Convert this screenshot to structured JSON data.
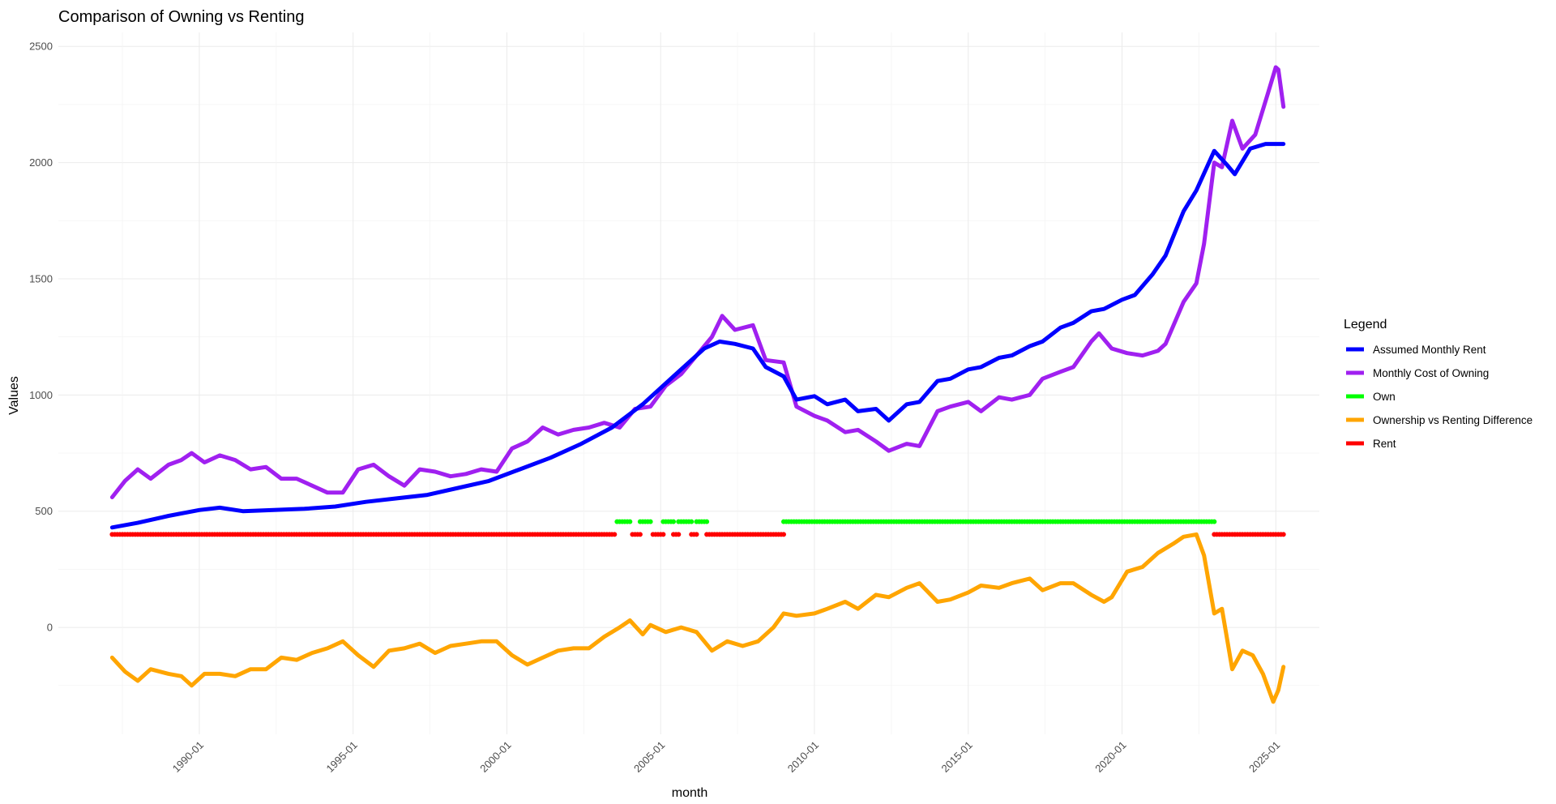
{
  "chart_data": {
    "type": "line",
    "title": "Comparison of Owning vs Renting",
    "xlabel": "month",
    "ylabel": "Values",
    "x_ticks": [
      "1990-01",
      "1995-01",
      "2000-01",
      "2005-01",
      "2010-01",
      "2015-01",
      "2020-01",
      "2025-01"
    ],
    "xlim": [
      "1985-06",
      "2026-06"
    ],
    "y_ticks": [
      "0",
      "500",
      "1000",
      "1500",
      "2000",
      "2500"
    ],
    "ylim": [
      -460,
      2560
    ],
    "grid": true,
    "legend_title": "Legend",
    "legend_position": "right",
    "series": [
      {
        "name": "Assumed Monthly Rent",
        "color": "#0000FF",
        "kind": "line",
        "points": [
          [
            "1987-03",
            430
          ],
          [
            "1988-01",
            450
          ],
          [
            "1989-01",
            480
          ],
          [
            "1990-01",
            505
          ],
          [
            "1990-09",
            515
          ],
          [
            "1991-06",
            500
          ],
          [
            "1992-06",
            505
          ],
          [
            "1993-06",
            510
          ],
          [
            "1994-06",
            520
          ],
          [
            "1995-06",
            540
          ],
          [
            "1996-06",
            555
          ],
          [
            "1997-06",
            570
          ],
          [
            "1998-06",
            600
          ],
          [
            "1999-06",
            630
          ],
          [
            "2000-06",
            680
          ],
          [
            "2001-06",
            730
          ],
          [
            "2002-06",
            790
          ],
          [
            "2003-06",
            860
          ],
          [
            "2004-06",
            960
          ],
          [
            "2005-06",
            1080
          ],
          [
            "2006-06",
            1200
          ],
          [
            "2006-12",
            1230
          ],
          [
            "2007-06",
            1220
          ],
          [
            "2008-01",
            1200
          ],
          [
            "2008-06",
            1120
          ],
          [
            "2009-01",
            1080
          ],
          [
            "2009-06",
            980
          ],
          [
            "2010-01",
            995
          ],
          [
            "2010-06",
            960
          ],
          [
            "2011-01",
            980
          ],
          [
            "2011-06",
            930
          ],
          [
            "2012-01",
            940
          ],
          [
            "2012-06",
            890
          ],
          [
            "2013-01",
            960
          ],
          [
            "2013-06",
            970
          ],
          [
            "2014-01",
            1060
          ],
          [
            "2014-06",
            1070
          ],
          [
            "2015-01",
            1110
          ],
          [
            "2015-06",
            1120
          ],
          [
            "2016-01",
            1160
          ],
          [
            "2016-06",
            1170
          ],
          [
            "2017-01",
            1210
          ],
          [
            "2017-06",
            1230
          ],
          [
            "2018-01",
            1290
          ],
          [
            "2018-06",
            1310
          ],
          [
            "2019-01",
            1360
          ],
          [
            "2019-06",
            1370
          ],
          [
            "2020-01",
            1410
          ],
          [
            "2020-06",
            1430
          ],
          [
            "2021-01",
            1520
          ],
          [
            "2021-06",
            1600
          ],
          [
            "2022-01",
            1790
          ],
          [
            "2022-06",
            1880
          ],
          [
            "2023-01",
            2050
          ],
          [
            "2023-06",
            1990
          ],
          [
            "2023-09",
            1950
          ],
          [
            "2024-03",
            2060
          ],
          [
            "2024-09",
            2080
          ],
          [
            "2025-04",
            2080
          ]
        ]
      },
      {
        "name": "Monthly Cost of Owning",
        "color": "#A020F0",
        "kind": "line",
        "points": [
          [
            "1987-03",
            560
          ],
          [
            "1987-08",
            630
          ],
          [
            "1988-01",
            680
          ],
          [
            "1988-06",
            640
          ],
          [
            "1989-01",
            700
          ],
          [
            "1989-06",
            720
          ],
          [
            "1989-10",
            750
          ],
          [
            "1990-03",
            710
          ],
          [
            "1990-09",
            740
          ],
          [
            "1991-03",
            720
          ],
          [
            "1991-09",
            680
          ],
          [
            "1992-03",
            690
          ],
          [
            "1992-09",
            640
          ],
          [
            "1993-03",
            640
          ],
          [
            "1993-09",
            610
          ],
          [
            "1994-03",
            580
          ],
          [
            "1994-09",
            580
          ],
          [
            "1995-03",
            680
          ],
          [
            "1995-09",
            700
          ],
          [
            "1996-03",
            650
          ],
          [
            "1996-09",
            610
          ],
          [
            "1997-03",
            680
          ],
          [
            "1997-09",
            670
          ],
          [
            "1998-03",
            650
          ],
          [
            "1998-09",
            660
          ],
          [
            "1999-03",
            680
          ],
          [
            "1999-09",
            670
          ],
          [
            "2000-03",
            770
          ],
          [
            "2000-09",
            800
          ],
          [
            "2001-03",
            860
          ],
          [
            "2001-09",
            830
          ],
          [
            "2002-03",
            850
          ],
          [
            "2002-09",
            860
          ],
          [
            "2003-03",
            880
          ],
          [
            "2003-09",
            860
          ],
          [
            "2004-03",
            940
          ],
          [
            "2004-09",
            950
          ],
          [
            "2005-03",
            1040
          ],
          [
            "2005-09",
            1090
          ],
          [
            "2006-03",
            1170
          ],
          [
            "2006-09",
            1250
          ],
          [
            "2007-01",
            1340
          ],
          [
            "2007-06",
            1280
          ],
          [
            "2008-01",
            1300
          ],
          [
            "2008-06",
            1150
          ],
          [
            "2009-01",
            1140
          ],
          [
            "2009-06",
            950
          ],
          [
            "2010-01",
            910
          ],
          [
            "2010-06",
            890
          ],
          [
            "2011-01",
            840
          ],
          [
            "2011-06",
            850
          ],
          [
            "2012-01",
            800
          ],
          [
            "2012-06",
            760
          ],
          [
            "2013-01",
            790
          ],
          [
            "2013-06",
            780
          ],
          [
            "2014-01",
            930
          ],
          [
            "2014-06",
            950
          ],
          [
            "2015-01",
            970
          ],
          [
            "2015-06",
            930
          ],
          [
            "2016-01",
            990
          ],
          [
            "2016-06",
            980
          ],
          [
            "2017-01",
            1000
          ],
          [
            "2017-06",
            1070
          ],
          [
            "2018-01",
            1100
          ],
          [
            "2018-06",
            1120
          ],
          [
            "2019-01",
            1230
          ],
          [
            "2019-04",
            1265
          ],
          [
            "2019-09",
            1200
          ],
          [
            "2020-03",
            1180
          ],
          [
            "2020-09",
            1170
          ],
          [
            "2021-03",
            1190
          ],
          [
            "2021-06",
            1220
          ],
          [
            "2022-01",
            1400
          ],
          [
            "2022-06",
            1480
          ],
          [
            "2022-09",
            1650
          ],
          [
            "2023-01",
            2000
          ],
          [
            "2023-04",
            1980
          ],
          [
            "2023-08",
            2180
          ],
          [
            "2023-12",
            2060
          ],
          [
            "2024-05",
            2120
          ],
          [
            "2024-10",
            2300
          ],
          [
            "2025-01",
            2410
          ],
          [
            "2025-02",
            2400
          ],
          [
            "2025-04",
            2240
          ]
        ]
      },
      {
        "name": "Own",
        "color": "#00FF00",
        "kind": "points",
        "y": 455,
        "ranges": [
          [
            "2003-08",
            "2004-01"
          ],
          [
            "2004-05",
            "2004-09"
          ],
          [
            "2005-02",
            "2005-06"
          ],
          [
            "2005-08",
            "2006-01"
          ],
          [
            "2006-03",
            "2006-07"
          ],
          [
            "2009-01",
            "2023-01"
          ]
        ]
      },
      {
        "name": "Ownership vs Renting Difference",
        "color": "#FFA500",
        "kind": "line",
        "points": [
          [
            "1987-03",
            -130
          ],
          [
            "1987-08",
            -190
          ],
          [
            "1988-01",
            -230
          ],
          [
            "1988-06",
            -180
          ],
          [
            "1989-01",
            -200
          ],
          [
            "1989-06",
            -210
          ],
          [
            "1989-10",
            -250
          ],
          [
            "1990-03",
            -200
          ],
          [
            "1990-09",
            -200
          ],
          [
            "1991-03",
            -210
          ],
          [
            "1991-09",
            -180
          ],
          [
            "1992-03",
            -180
          ],
          [
            "1992-09",
            -130
          ],
          [
            "1993-03",
            -140
          ],
          [
            "1993-09",
            -110
          ],
          [
            "1994-03",
            -90
          ],
          [
            "1994-09",
            -60
          ],
          [
            "1995-03",
            -120
          ],
          [
            "1995-09",
            -170
          ],
          [
            "1996-03",
            -100
          ],
          [
            "1996-09",
            -90
          ],
          [
            "1997-03",
            -70
          ],
          [
            "1997-09",
            -110
          ],
          [
            "1998-03",
            -80
          ],
          [
            "1998-09",
            -70
          ],
          [
            "1999-03",
            -60
          ],
          [
            "1999-09",
            -60
          ],
          [
            "2000-03",
            -120
          ],
          [
            "2000-09",
            -160
          ],
          [
            "2001-03",
            -130
          ],
          [
            "2001-09",
            -100
          ],
          [
            "2002-03",
            -90
          ],
          [
            "2002-09",
            -90
          ],
          [
            "2003-03",
            -40
          ],
          [
            "2003-09",
            0
          ],
          [
            "2004-01",
            30
          ],
          [
            "2004-06",
            -30
          ],
          [
            "2004-09",
            10
          ],
          [
            "2005-03",
            -20
          ],
          [
            "2005-09",
            0
          ],
          [
            "2006-03",
            -20
          ],
          [
            "2006-09",
            -100
          ],
          [
            "2007-03",
            -60
          ],
          [
            "2007-09",
            -80
          ],
          [
            "2008-03",
            -60
          ],
          [
            "2008-09",
            0
          ],
          [
            "2009-01",
            60
          ],
          [
            "2009-06",
            50
          ],
          [
            "2010-01",
            60
          ],
          [
            "2010-06",
            80
          ],
          [
            "2011-01",
            110
          ],
          [
            "2011-06",
            80
          ],
          [
            "2012-01",
            140
          ],
          [
            "2012-06",
            130
          ],
          [
            "2013-01",
            170
          ],
          [
            "2013-06",
            190
          ],
          [
            "2014-01",
            110
          ],
          [
            "2014-06",
            120
          ],
          [
            "2015-01",
            150
          ],
          [
            "2015-06",
            180
          ],
          [
            "2016-01",
            170
          ],
          [
            "2016-06",
            190
          ],
          [
            "2017-01",
            210
          ],
          [
            "2017-06",
            160
          ],
          [
            "2018-01",
            190
          ],
          [
            "2018-06",
            190
          ],
          [
            "2019-01",
            140
          ],
          [
            "2019-06",
            110
          ],
          [
            "2019-09",
            130
          ],
          [
            "2020-03",
            240
          ],
          [
            "2020-09",
            260
          ],
          [
            "2021-03",
            320
          ],
          [
            "2021-09",
            360
          ],
          [
            "2022-01",
            390
          ],
          [
            "2022-06",
            400
          ],
          [
            "2022-09",
            310
          ],
          [
            "2023-01",
            60
          ],
          [
            "2023-04",
            80
          ],
          [
            "2023-08",
            -180
          ],
          [
            "2023-12",
            -100
          ],
          [
            "2024-04",
            -120
          ],
          [
            "2024-08",
            -200
          ],
          [
            "2024-12",
            -320
          ],
          [
            "2025-02",
            -270
          ],
          [
            "2025-04",
            -170
          ]
        ]
      },
      {
        "name": "Rent",
        "color": "#FF0000",
        "kind": "points",
        "y": 400,
        "ranges": [
          [
            "1987-03",
            "2003-07"
          ],
          [
            "2004-02",
            "2004-05"
          ],
          [
            "2004-10",
            "2005-02"
          ],
          [
            "2005-06",
            "2005-08"
          ],
          [
            "2006-01",
            "2006-03"
          ],
          [
            "2006-07",
            "2009-01"
          ],
          [
            "2023-01",
            "2025-04"
          ]
        ]
      }
    ]
  }
}
